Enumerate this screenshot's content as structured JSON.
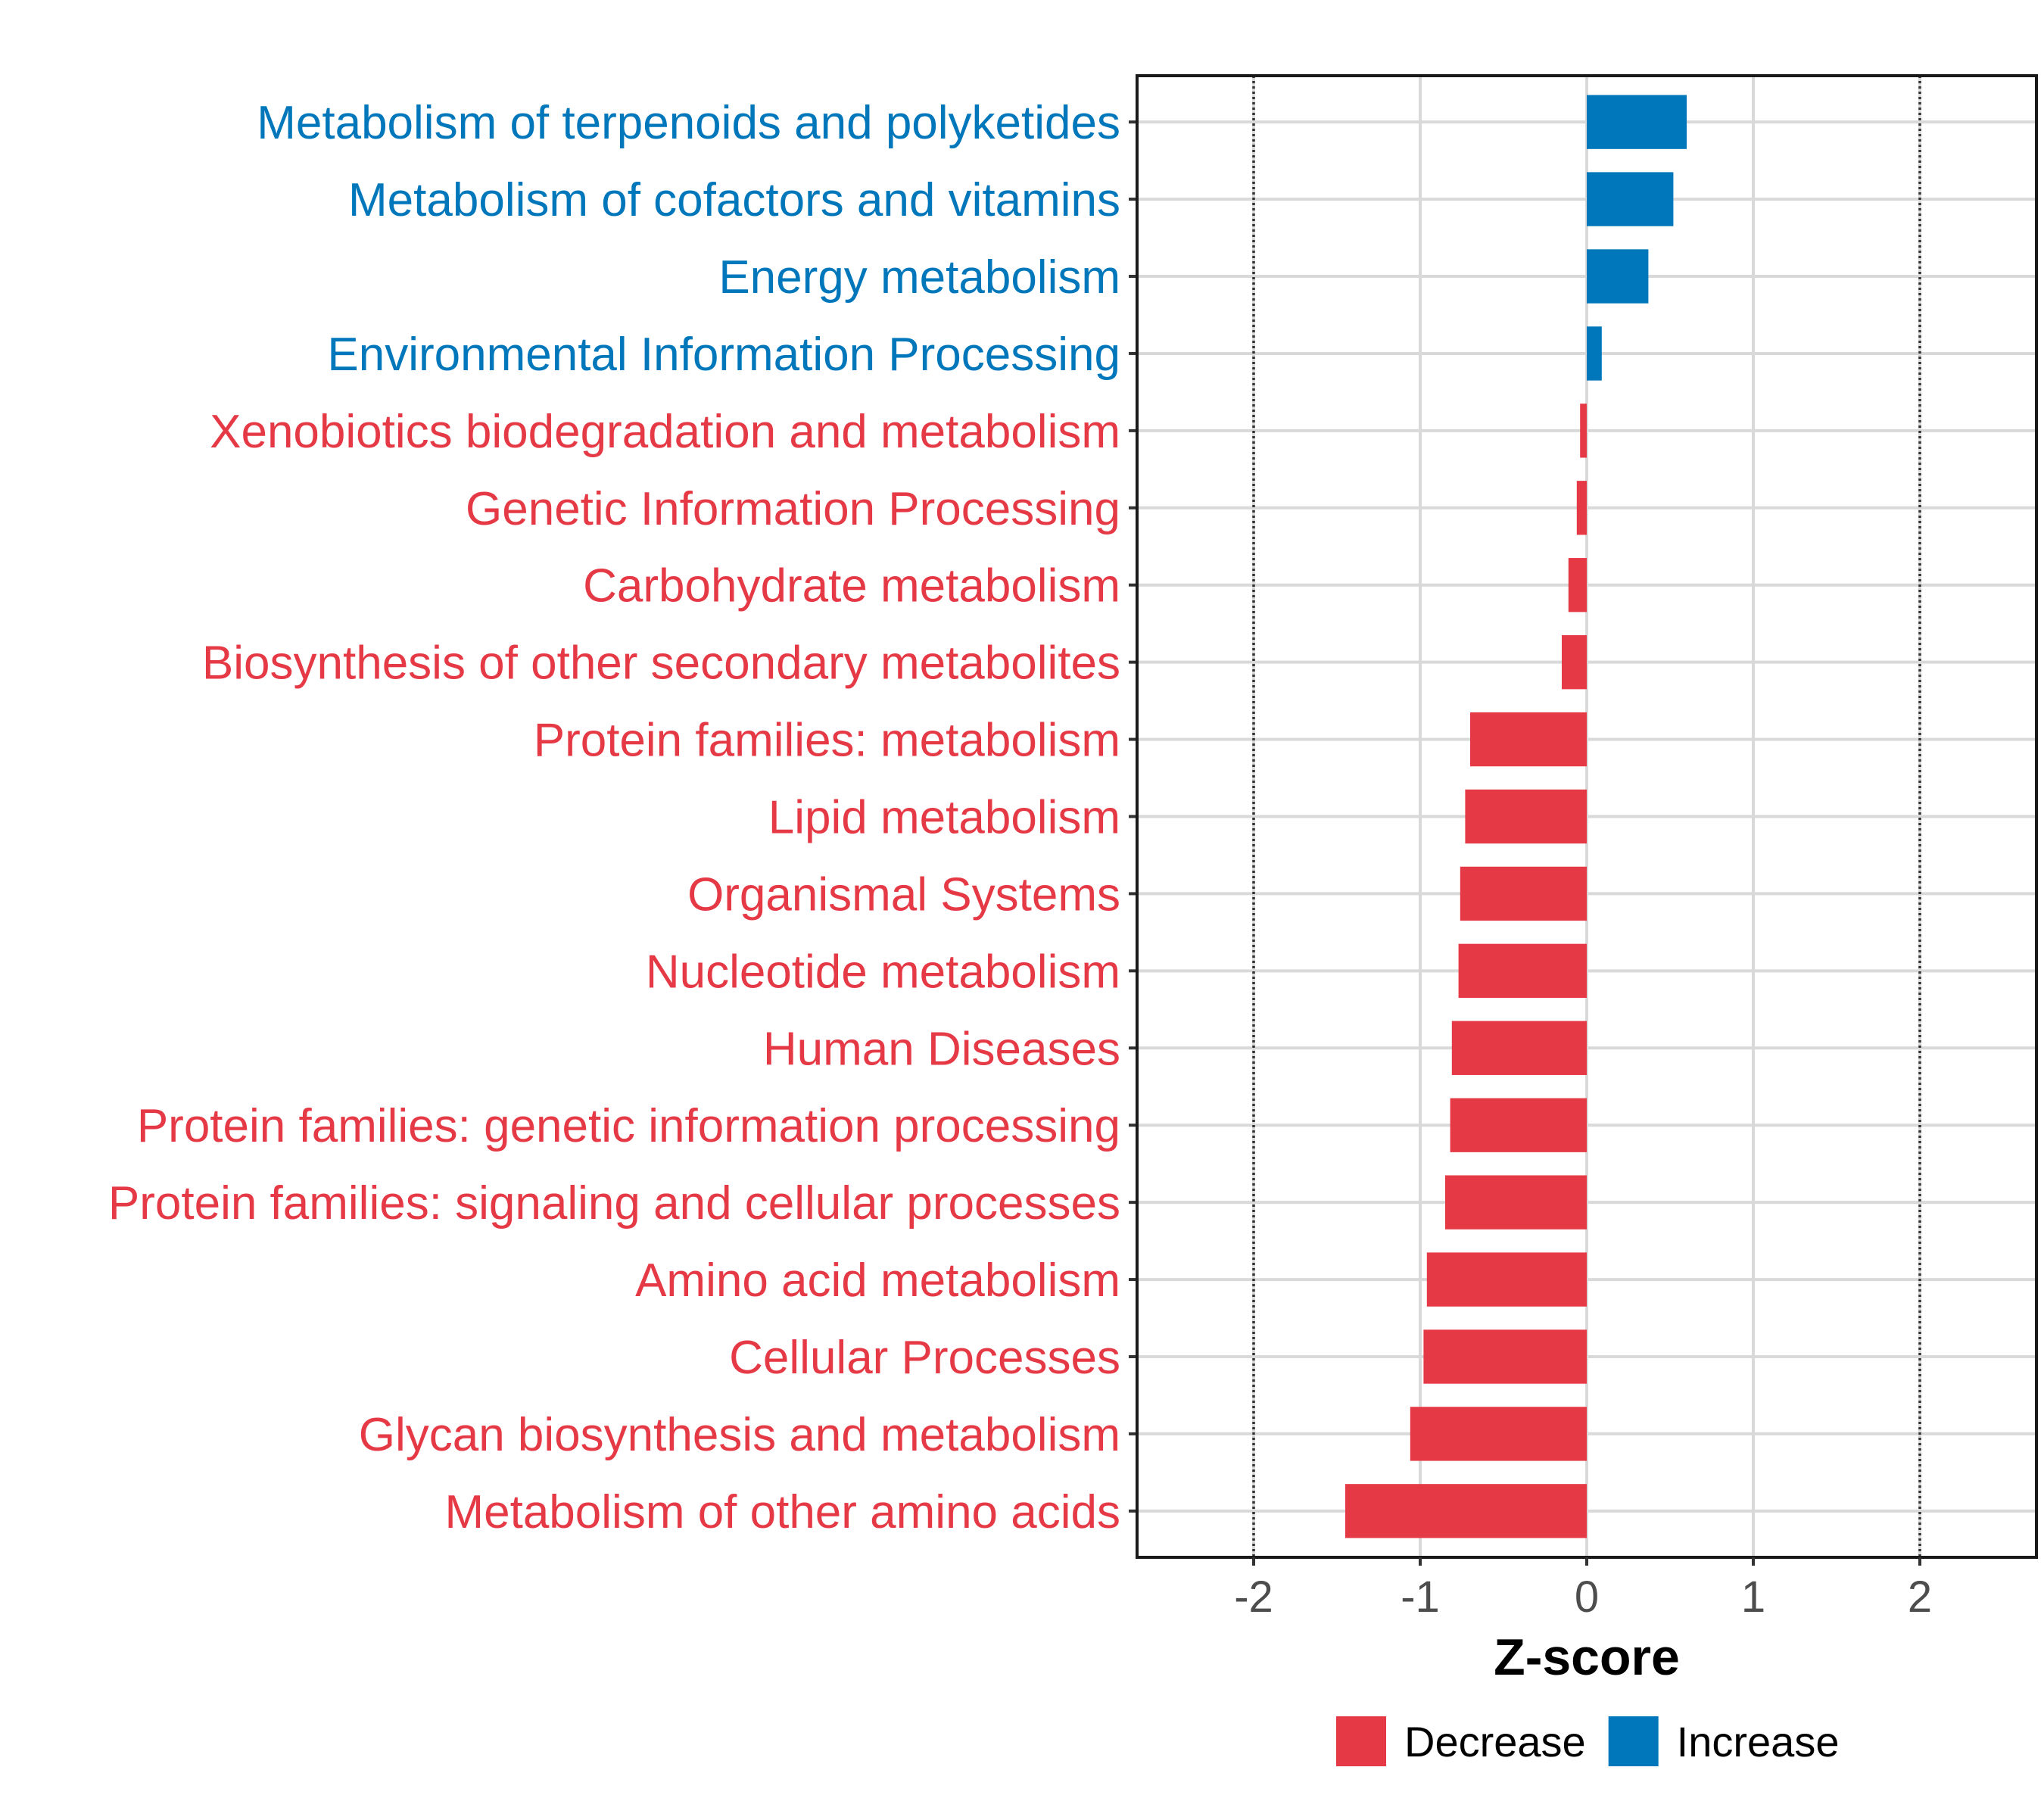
{
  "chart_data": {
    "type": "bar",
    "orientation": "horizontal",
    "title": "",
    "xlabel": "Z-score",
    "ylabel": "",
    "xlim": [
      -2.7,
      2.7
    ],
    "x_ticks": [
      -2,
      -1,
      0,
      1,
      2
    ],
    "x_tick_labels": [
      "-2",
      "-1",
      "0",
      "1",
      "2"
    ],
    "reference_lines": [
      -2,
      2
    ],
    "grid": true,
    "legend_position": "bottom",
    "colors": {
      "Decrease": "#e63946",
      "Increase": "#0077bb"
    },
    "legend": [
      {
        "name": "Decrease",
        "color": "#e63946"
      },
      {
        "name": "Increase",
        "color": "#0077bb"
      }
    ],
    "categories": [
      "Metabolism of terpenoids and polyketides",
      "Metabolism of cofactors and vitamins",
      "Energy metabolism",
      "Environmental Information Processing",
      "Xenobiotics biodegradation and metabolism",
      "Genetic Information Processing",
      "Carbohydrate metabolism",
      "Biosynthesis of other secondary metabolites",
      "Protein families: metabolism",
      "Lipid metabolism",
      "Organismal Systems",
      "Nucleotide metabolism",
      "Human Diseases",
      "Protein families: genetic information processing",
      "Protein families: signaling and cellular processes",
      "Amino acid metabolism",
      "Cellular Processes",
      "Glycan biosynthesis and metabolism",
      "Metabolism of other amino acids"
    ],
    "values": [
      0.6,
      0.52,
      0.37,
      0.09,
      -0.04,
      -0.06,
      -0.11,
      -0.15,
      -0.7,
      -0.73,
      -0.76,
      -0.77,
      -0.81,
      -0.82,
      -0.85,
      -0.96,
      -0.98,
      -1.06,
      -1.45
    ],
    "groups": [
      "Increase",
      "Increase",
      "Increase",
      "Increase",
      "Decrease",
      "Decrease",
      "Decrease",
      "Decrease",
      "Decrease",
      "Decrease",
      "Decrease",
      "Decrease",
      "Decrease",
      "Decrease",
      "Decrease",
      "Decrease",
      "Decrease",
      "Decrease",
      "Decrease"
    ]
  }
}
